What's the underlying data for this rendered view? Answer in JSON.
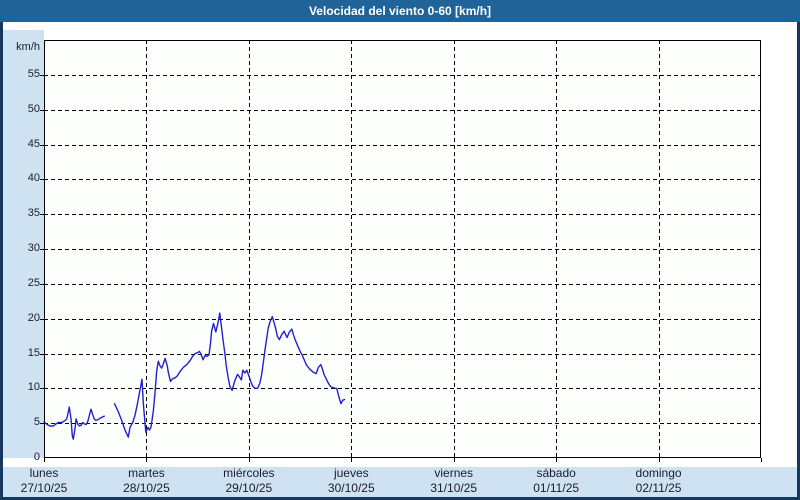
{
  "title_bar": {
    "title": "Velocidad del viento 0-60 [km/h]",
    "bg_color": "#1f6398",
    "text_color": "#ffffff"
  },
  "colors": {
    "outer_border": "#17375e",
    "margin_strip": "#cfe2f2",
    "plot_background": "#fdfffd",
    "grid": "#000000",
    "line": "#2121cc",
    "label_text": "#1c1c28"
  },
  "chart_data": {
    "type": "line",
    "title": "Velocidad del viento 0-60 [km/h]",
    "ylabel": "km/h",
    "ylim": [
      0,
      60
    ],
    "ytick_step": 5,
    "yticks": [
      0,
      5,
      10,
      15,
      20,
      25,
      30,
      35,
      40,
      45,
      50,
      55
    ],
    "grid": "dashed",
    "legend": "none",
    "x_unit": "days from lunes 27/10/25 00:00",
    "xlim": [
      0,
      7
    ],
    "days": [
      {
        "name": "lunes",
        "date": "27/10/25"
      },
      {
        "name": "martes",
        "date": "28/10/25"
      },
      {
        "name": "miércoles",
        "date": "29/10/25"
      },
      {
        "name": "jueves",
        "date": "30/10/25"
      },
      {
        "name": "viernes",
        "date": "31/10/25"
      },
      {
        "name": "sábado",
        "date": "01/11/25"
      },
      {
        "name": "domingo",
        "date": "02/11/25"
      }
    ],
    "line_color": "#2121cc",
    "series": [
      {
        "name": "velocidad del viento [km/h]",
        "segments": [
          [
            [
              0.0,
              5.2
            ],
            [
              0.032,
              4.8
            ],
            [
              0.059,
              4.6
            ],
            [
              0.091,
              4.6
            ],
            [
              0.117,
              4.9
            ],
            [
              0.14,
              5.1
            ],
            [
              0.173,
              5.1
            ],
            [
              0.198,
              5.3
            ],
            [
              0.222,
              5.6
            ],
            [
              0.247,
              7.3
            ],
            [
              0.264,
              5.6
            ],
            [
              0.276,
              3.2
            ],
            [
              0.286,
              2.7
            ],
            [
              0.303,
              4.2
            ],
            [
              0.313,
              5.6
            ],
            [
              0.329,
              4.9
            ],
            [
              0.345,
              4.6
            ],
            [
              0.361,
              4.7
            ],
            [
              0.378,
              5.1
            ],
            [
              0.394,
              4.9
            ],
            [
              0.41,
              4.8
            ],
            [
              0.427,
              5.2
            ],
            [
              0.442,
              6.1
            ],
            [
              0.459,
              7.0
            ],
            [
              0.476,
              6.2
            ],
            [
              0.491,
              5.6
            ],
            [
              0.508,
              5.4
            ],
            [
              0.524,
              5.5
            ],
            [
              0.547,
              5.7
            ],
            [
              0.573,
              5.9
            ],
            [
              0.589,
              6.0
            ]
          ],
          [
            [
              0.688,
              7.8
            ],
            [
              0.726,
              6.6
            ],
            [
              0.759,
              5.4
            ],
            [
              0.791,
              4.0
            ],
            [
              0.823,
              3.0
            ],
            [
              0.84,
              4.4
            ],
            [
              0.866,
              5.1
            ],
            [
              0.889,
              6.2
            ],
            [
              0.911,
              7.7
            ],
            [
              0.931,
              9.3
            ],
            [
              0.957,
              11.3
            ],
            [
              0.97,
              7.7
            ],
            [
              0.994,
              3.7
            ],
            [
              1.016,
              4.4
            ],
            [
              1.03,
              4.0
            ],
            [
              1.045,
              4.4
            ],
            [
              1.067,
              6.7
            ],
            [
              1.084,
              9.3
            ],
            [
              1.1,
              12.5
            ],
            [
              1.116,
              13.9
            ],
            [
              1.133,
              13.2
            ],
            [
              1.149,
              12.9
            ],
            [
              1.165,
              13.5
            ],
            [
              1.182,
              14.3
            ],
            [
              1.204,
              13.2
            ],
            [
              1.214,
              12.3
            ],
            [
              1.235,
              11.0
            ],
            [
              1.257,
              11.4
            ],
            [
              1.279,
              11.5
            ],
            [
              1.302,
              11.8
            ],
            [
              1.328,
              12.4
            ],
            [
              1.36,
              13.0
            ],
            [
              1.394,
              13.4
            ],
            [
              1.426,
              14.0
            ],
            [
              1.452,
              14.6
            ],
            [
              1.475,
              15.0
            ],
            [
              1.497,
              15.1
            ],
            [
              1.517,
              15.3
            ],
            [
              1.533,
              14.9
            ],
            [
              1.553,
              14.1
            ],
            [
              1.572,
              14.7
            ],
            [
              1.592,
              14.6
            ],
            [
              1.611,
              14.8
            ],
            [
              1.626,
              16.5
            ],
            [
              1.636,
              18.2
            ],
            [
              1.655,
              19.3
            ],
            [
              1.667,
              18.7
            ],
            [
              1.677,
              18.1
            ],
            [
              1.699,
              19.4
            ],
            [
              1.716,
              20.8
            ],
            [
              1.732,
              18.9
            ],
            [
              1.748,
              17.0
            ],
            [
              1.765,
              15.1
            ],
            [
              1.78,
              13.2
            ],
            [
              1.797,
              11.6
            ],
            [
              1.814,
              10.3
            ],
            [
              1.836,
              9.7
            ],
            [
              1.853,
              10.6
            ],
            [
              1.868,
              11.3
            ],
            [
              1.89,
              12.0
            ],
            [
              1.911,
              11.6
            ],
            [
              1.927,
              11.2
            ],
            [
              1.941,
              12.6
            ],
            [
              1.96,
              12.2
            ],
            [
              1.98,
              12.6
            ],
            [
              2.002,
              11.7
            ],
            [
              2.021,
              10.9
            ],
            [
              2.038,
              10.3
            ],
            [
              2.061,
              10.0
            ],
            [
              2.085,
              10.0
            ],
            [
              2.109,
              10.8
            ],
            [
              2.126,
              12.1
            ],
            [
              2.142,
              13.8
            ],
            [
              2.158,
              15.5
            ],
            [
              2.175,
              17.3
            ],
            [
              2.19,
              18.7
            ],
            [
              2.207,
              19.6
            ],
            [
              2.229,
              20.3
            ],
            [
              2.246,
              19.4
            ],
            [
              2.263,
              18.5
            ],
            [
              2.278,
              17.5
            ],
            [
              2.298,
              17.0
            ],
            [
              2.321,
              17.7
            ],
            [
              2.344,
              18.2
            ],
            [
              2.36,
              17.7
            ],
            [
              2.373,
              17.3
            ],
            [
              2.393,
              18.0
            ],
            [
              2.419,
              18.5
            ],
            [
              2.435,
              17.7
            ],
            [
              2.451,
              17.0
            ],
            [
              2.468,
              16.4
            ],
            [
              2.483,
              15.9
            ],
            [
              2.5,
              15.3
            ],
            [
              2.517,
              14.9
            ],
            [
              2.532,
              14.4
            ],
            [
              2.549,
              13.8
            ],
            [
              2.565,
              13.3
            ],
            [
              2.581,
              13.0
            ],
            [
              2.598,
              12.7
            ],
            [
              2.63,
              12.3
            ],
            [
              2.656,
              12.1
            ],
            [
              2.679,
              13.0
            ],
            [
              2.702,
              13.4
            ],
            [
              2.722,
              12.6
            ],
            [
              2.734,
              12.0
            ],
            [
              2.754,
              11.4
            ],
            [
              2.767,
              11.0
            ],
            [
              2.786,
              10.5
            ],
            [
              2.803,
              10.2
            ],
            [
              2.822,
              10.1
            ],
            [
              2.842,
              10.0
            ],
            [
              2.858,
              10.0
            ],
            [
              2.868,
              9.4
            ],
            [
              2.881,
              8.7
            ],
            [
              2.891,
              8.2
            ],
            [
              2.9,
              7.8
            ],
            [
              2.917,
              8.3
            ],
            [
              2.935,
              8.4
            ]
          ]
        ]
      }
    ]
  }
}
